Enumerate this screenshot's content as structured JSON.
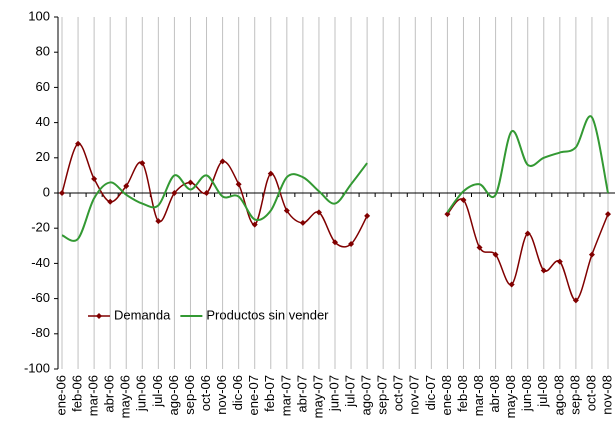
{
  "chart_data": {
    "type": "line",
    "categories": [
      "ene-06",
      "feb-06",
      "mar-06",
      "abr-06",
      "may-06",
      "jun-06",
      "jul-06",
      "ago-06",
      "sep-06",
      "oct-06",
      "nov-06",
      "dic-06",
      "ene-07",
      "feb-07",
      "mar-07",
      "abr-07",
      "may-07",
      "jun-07",
      "jul-07",
      "ago-07",
      "sep-07",
      "oct-07",
      "nov-07",
      "dic-07",
      "ene-08",
      "feb-08",
      "mar-08",
      "abr-08",
      "may-08",
      "jun-08",
      "jul-08",
      "ago-08",
      "sep-08",
      "oct-08",
      "nov-08"
    ],
    "series": [
      {
        "name": "Demanda",
        "color": "#800000",
        "marker": "diamond",
        "values": [
          0,
          28,
          8,
          -5,
          4,
          17,
          -16,
          0,
          6,
          0,
          18,
          5,
          -18,
          11,
          -10,
          -17,
          -11,
          -28,
          -29,
          -13,
          null,
          null,
          null,
          null,
          -12,
          -4,
          -31,
          -35,
          -52,
          -23,
          -44,
          -39,
          -61,
          -35,
          -12
        ]
      },
      {
        "name": "Productos sin vender",
        "color": "#339933",
        "values": [
          -24,
          -26,
          -3,
          6,
          -1,
          -6,
          -7,
          10,
          2,
          10,
          -2,
          -2,
          -15,
          -10,
          9,
          9,
          1,
          -6,
          5,
          17,
          null,
          null,
          null,
          null,
          -11,
          1,
          5,
          -1,
          35,
          16,
          20,
          23,
          26,
          43,
          0
        ]
      }
    ],
    "ylim": [
      -100,
      100
    ],
    "yticks": [
      -100,
      -80,
      -60,
      -40,
      -20,
      0,
      20,
      40,
      60,
      80,
      100
    ],
    "xgrid": true,
    "smooth": true,
    "legend": "lower left"
  }
}
